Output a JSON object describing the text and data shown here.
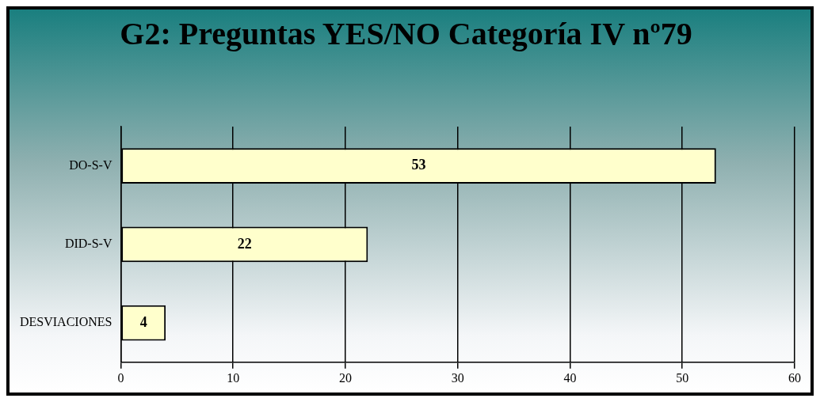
{
  "chart_data": {
    "type": "bar",
    "orientation": "horizontal",
    "title": "G2: Preguntas YES/NO Categoría IV nº79",
    "categories": [
      "DO-S-V",
      "DID-S-V",
      "DESVIACIONES"
    ],
    "values": [
      53,
      22,
      4
    ],
    "color": "#ffffcc",
    "xlim": [
      0,
      60
    ],
    "xticks": [
      0,
      10,
      20,
      30,
      40,
      50,
      60
    ],
    "grid": "x",
    "data_labels": true
  }
}
